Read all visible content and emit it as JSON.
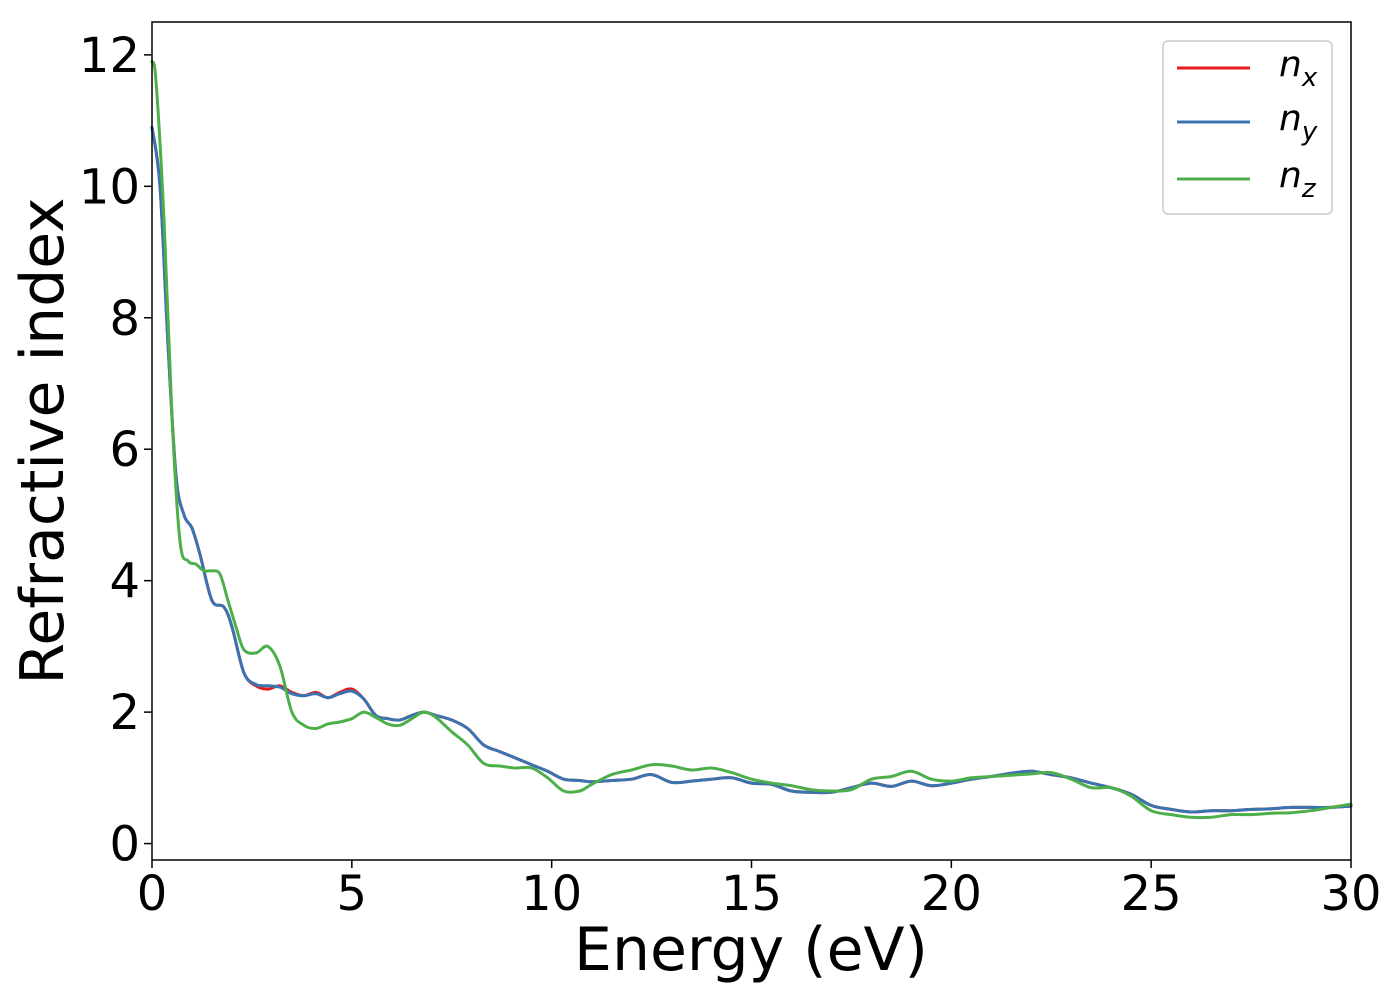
{
  "chart_data": {
    "type": "line",
    "title": "",
    "xlabel": "Energy (eV)",
    "ylabel": "Refractive index",
    "xlim": [
      0,
      30
    ],
    "ylim": [
      -0.25,
      12.5
    ],
    "xticks": [
      0,
      5,
      10,
      15,
      20,
      25,
      30
    ],
    "yticks": [
      0,
      2,
      4,
      6,
      8,
      10,
      12
    ],
    "grid": false,
    "legend_position": "top-right",
    "series": [
      {
        "name": "n_x",
        "label_base": "n",
        "label_sub": "x",
        "color": "#e41a1c",
        "x": [
          0,
          0.2,
          0.4,
          0.6,
          0.8,
          1.0,
          1.2,
          1.5,
          1.8,
          2.0,
          2.3,
          2.6,
          2.9,
          3.2,
          3.5,
          3.8,
          4.1,
          4.4,
          4.7,
          5.0,
          5.3,
          5.6,
          5.9,
          6.2,
          6.5,
          6.8,
          7.1,
          7.5,
          7.9,
          8.3,
          8.7,
          9.1,
          9.5,
          9.9,
          10.3,
          10.7,
          11.0,
          11.5,
          12.0,
          12.5,
          13.0,
          13.5,
          14.0,
          14.5,
          15.0,
          15.5,
          16.0,
          16.5,
          17.0,
          17.5,
          18.0,
          18.5,
          19.0,
          19.5,
          20.0,
          20.5,
          21.0,
          21.5,
          22.0,
          22.5,
          23.0,
          23.5,
          24.0,
          24.5,
          25.0,
          25.5,
          26.0,
          26.5,
          27.0,
          27.5,
          28.0,
          28.5,
          29.0,
          29.5,
          30.0
        ],
        "y": [
          10.9,
          10.0,
          7.6,
          5.6,
          5.0,
          4.8,
          4.4,
          3.7,
          3.6,
          3.3,
          2.6,
          2.4,
          2.35,
          2.4,
          2.3,
          2.25,
          2.3,
          2.22,
          2.3,
          2.35,
          2.2,
          1.95,
          1.9,
          1.88,
          1.95,
          2.0,
          1.95,
          1.88,
          1.75,
          1.5,
          1.4,
          1.3,
          1.2,
          1.1,
          0.98,
          0.96,
          0.94,
          0.96,
          0.98,
          1.05,
          0.93,
          0.95,
          0.98,
          1.0,
          0.92,
          0.9,
          0.8,
          0.78,
          0.78,
          0.85,
          0.92,
          0.87,
          0.95,
          0.88,
          0.92,
          0.98,
          1.02,
          1.07,
          1.1,
          1.05,
          1.0,
          0.92,
          0.85,
          0.75,
          0.58,
          0.52,
          0.48,
          0.5,
          0.5,
          0.52,
          0.53,
          0.55,
          0.55,
          0.55,
          0.57
        ]
      },
      {
        "name": "n_y",
        "label_base": "n",
        "label_sub": "y",
        "color": "#3a74b0",
        "x": [
          0,
          0.2,
          0.4,
          0.6,
          0.8,
          1.0,
          1.2,
          1.5,
          1.8,
          2.0,
          2.3,
          2.6,
          2.9,
          3.2,
          3.5,
          3.8,
          4.1,
          4.4,
          4.7,
          5.0,
          5.3,
          5.6,
          5.9,
          6.2,
          6.5,
          6.8,
          7.1,
          7.5,
          7.9,
          8.3,
          8.7,
          9.1,
          9.5,
          9.9,
          10.3,
          10.7,
          11.0,
          11.5,
          12.0,
          12.5,
          13.0,
          13.5,
          14.0,
          14.5,
          15.0,
          15.5,
          16.0,
          16.5,
          17.0,
          17.5,
          18.0,
          18.5,
          19.0,
          19.5,
          20.0,
          20.5,
          21.0,
          21.5,
          22.0,
          22.5,
          23.0,
          23.5,
          24.0,
          24.5,
          25.0,
          25.5,
          26.0,
          26.5,
          27.0,
          27.5,
          28.0,
          28.5,
          29.0,
          29.5,
          30.0
        ],
        "y": [
          10.9,
          10.0,
          7.6,
          5.6,
          5.0,
          4.8,
          4.4,
          3.7,
          3.6,
          3.3,
          2.6,
          2.42,
          2.4,
          2.38,
          2.28,
          2.25,
          2.28,
          2.22,
          2.28,
          2.32,
          2.2,
          1.95,
          1.9,
          1.88,
          1.95,
          2.0,
          1.95,
          1.88,
          1.75,
          1.5,
          1.4,
          1.3,
          1.2,
          1.1,
          0.98,
          0.96,
          0.94,
          0.96,
          0.98,
          1.05,
          0.93,
          0.95,
          0.98,
          1.0,
          0.92,
          0.9,
          0.8,
          0.78,
          0.78,
          0.85,
          0.92,
          0.87,
          0.95,
          0.88,
          0.92,
          0.98,
          1.02,
          1.07,
          1.1,
          1.05,
          1.0,
          0.92,
          0.85,
          0.75,
          0.58,
          0.52,
          0.48,
          0.5,
          0.5,
          0.52,
          0.53,
          0.55,
          0.55,
          0.55,
          0.57
        ]
      },
      {
        "name": "n_z",
        "label_base": "n",
        "label_sub": "z",
        "color": "#4daf4a",
        "x": [
          0,
          0.1,
          0.3,
          0.5,
          0.7,
          0.9,
          1.1,
          1.3,
          1.5,
          1.7,
          1.9,
          2.1,
          2.3,
          2.6,
          2.9,
          3.2,
          3.5,
          3.8,
          4.1,
          4.4,
          4.7,
          5.0,
          5.3,
          5.6,
          5.9,
          6.2,
          6.5,
          6.8,
          7.1,
          7.5,
          7.9,
          8.3,
          8.7,
          9.1,
          9.5,
          9.9,
          10.3,
          10.7,
          11.0,
          11.5,
          12.0,
          12.5,
          13.0,
          13.5,
          14.0,
          14.5,
          15.0,
          15.5,
          16.0,
          16.5,
          17.0,
          17.5,
          18.0,
          18.5,
          19.0,
          19.5,
          20.0,
          20.5,
          21.0,
          21.5,
          22.0,
          22.5,
          23.0,
          23.5,
          24.0,
          24.5,
          25.0,
          25.5,
          26.0,
          26.5,
          27.0,
          27.5,
          28.0,
          28.5,
          29.0,
          29.5,
          30.0
        ],
        "y": [
          11.9,
          11.6,
          9.5,
          6.5,
          4.6,
          4.3,
          4.25,
          4.15,
          4.15,
          4.1,
          3.7,
          3.3,
          2.95,
          2.9,
          3.0,
          2.7,
          2.0,
          1.8,
          1.75,
          1.82,
          1.85,
          1.9,
          2.0,
          1.92,
          1.82,
          1.8,
          1.9,
          2.0,
          1.92,
          1.7,
          1.5,
          1.22,
          1.18,
          1.15,
          1.15,
          1.0,
          0.8,
          0.8,
          0.9,
          1.05,
          1.12,
          1.2,
          1.18,
          1.12,
          1.15,
          1.08,
          0.98,
          0.92,
          0.88,
          0.82,
          0.8,
          0.82,
          0.98,
          1.02,
          1.1,
          0.98,
          0.95,
          1.0,
          1.02,
          1.04,
          1.06,
          1.08,
          0.98,
          0.85,
          0.85,
          0.72,
          0.5,
          0.44,
          0.4,
          0.4,
          0.44,
          0.44,
          0.46,
          0.47,
          0.5,
          0.55,
          0.6
        ]
      }
    ]
  }
}
